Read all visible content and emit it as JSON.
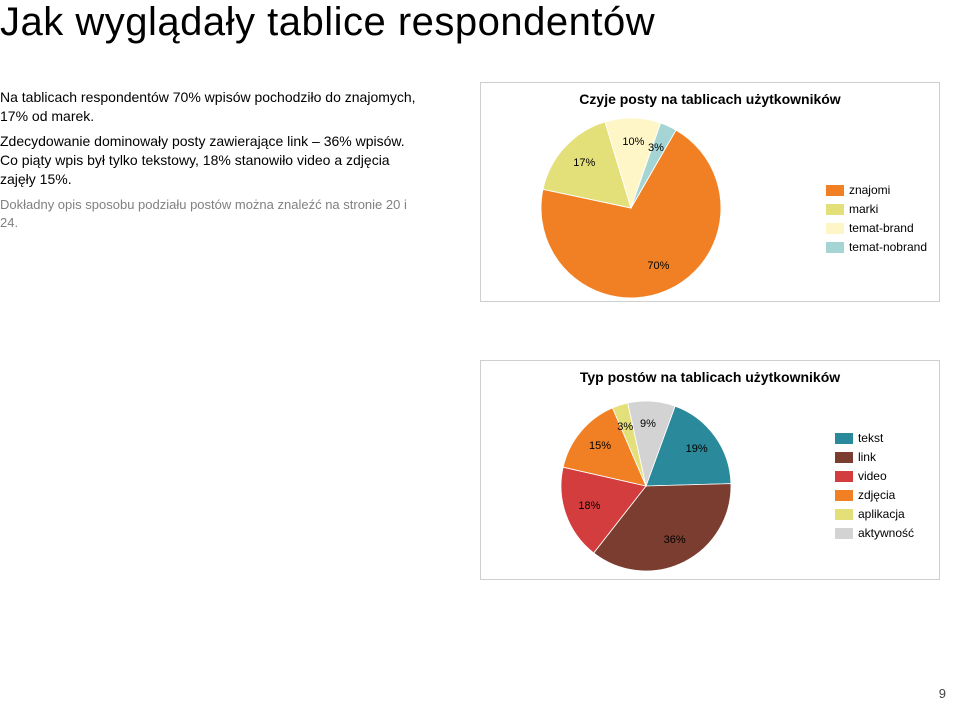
{
  "title": "Jak wyglądały tablice respondentów",
  "para1": "Na tablicach respondentów 70% wpisów pochodziło do znajomych, 17% od marek.",
  "para2": "Zdecydowanie dominowały posty zawierające link – 36% wpisów. Co piąty wpis był tylko tekstowy, 18% stanowiło video a zdjęcia zajęły 15%.",
  "para3": "Dokładny opis sposobu podziału postów można znaleźć na stronie 20 i 24.",
  "page_number": "9",
  "chart1": {
    "title": "Czyje posty na tablicach użytkowników",
    "colors": {
      "znajomi": "#f08023",
      "marki": "#e3e07a",
      "temat_brand": "#fff6c7",
      "temat_nobrand": "#a4d4d4"
    },
    "slices": [
      {
        "label": "70%",
        "value": 70,
        "color": "#f08023"
      },
      {
        "label": "17%",
        "value": 17,
        "color": "#e3e07a"
      },
      {
        "label": "10%",
        "value": 10,
        "color": "#fff6c7"
      },
      {
        "label": "3%",
        "value": 3,
        "color": "#a4d4d4"
      }
    ],
    "legend": [
      {
        "label": "znajomi",
        "color": "#f08023"
      },
      {
        "label": "marki",
        "color": "#e3e07a"
      },
      {
        "label": "temat-brand",
        "color": "#fff6c7"
      },
      {
        "label": "temat-nobrand",
        "color": "#a4d4d4"
      }
    ]
  },
  "chart2": {
    "title": "Typ postów na tablicach użytkowników",
    "slices": [
      {
        "label": "19%",
        "value": 19,
        "color": "#2a8a9b"
      },
      {
        "label": "36%",
        "value": 36,
        "color": "#7a3d2f"
      },
      {
        "label": "18%",
        "value": 18,
        "color": "#d43d3d"
      },
      {
        "label": "15%",
        "value": 15,
        "color": "#f08023"
      },
      {
        "label": "3%",
        "value": 3,
        "color": "#e3e07a"
      },
      {
        "label": "9%",
        "value": 9,
        "color": "#d3d3d3"
      }
    ],
    "legend": [
      {
        "label": "tekst",
        "color": "#2a8a9b"
      },
      {
        "label": "link",
        "color": "#7a3d2f"
      },
      {
        "label": "video",
        "color": "#d43d3d"
      },
      {
        "label": "zdjęcia",
        "color": "#f08023"
      },
      {
        "label": "aplikacja",
        "color": "#e3e07a"
      },
      {
        "label": "aktywność",
        "color": "#d3d3d3"
      }
    ]
  }
}
